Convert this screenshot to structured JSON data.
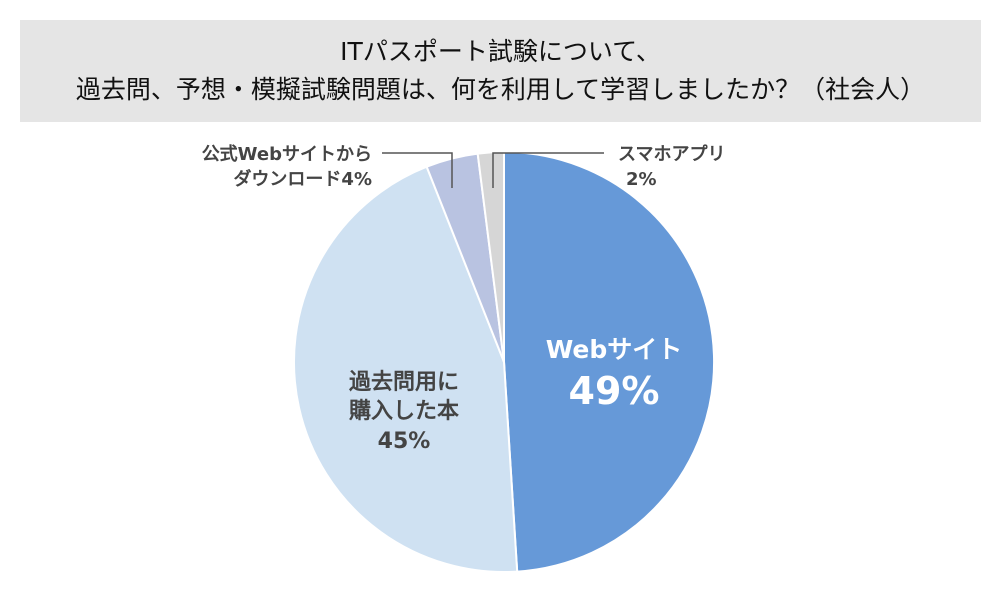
{
  "title": {
    "line1": "ITパスポート試験について、",
    "line2": "過去問、予想・模擬試験問題は、何を利用して学習しましたか？（社会人）"
  },
  "chart_data": {
    "type": "pie",
    "title": "ITパスポート試験について、過去問、予想・模擬試験問題は、何を利用して学習しましたか？（社会人）",
    "slices": [
      {
        "label": "Webサイト",
        "value": 49,
        "value_label": "49%",
        "color": "#6699d8"
      },
      {
        "label": "過去問用に購入した本",
        "label_lines": [
          "過去問用に",
          "購入した本"
        ],
        "value": 45,
        "value_label": "45%",
        "color": "#cfe1f2"
      },
      {
        "label": "公式Webサイトからダウンロード",
        "label_lines": [
          "公式Webサイトから",
          "ダウンロード4%"
        ],
        "value": 4,
        "value_label": "4%",
        "color": "#b9c3e1"
      },
      {
        "label": "スマホアプリ",
        "label_lines": [
          "スマホアプリ",
          "2%"
        ],
        "value": 2,
        "value_label": "2%",
        "color": "#d6d6d6"
      }
    ],
    "start": "12 o'clock",
    "direction": "clockwise"
  }
}
